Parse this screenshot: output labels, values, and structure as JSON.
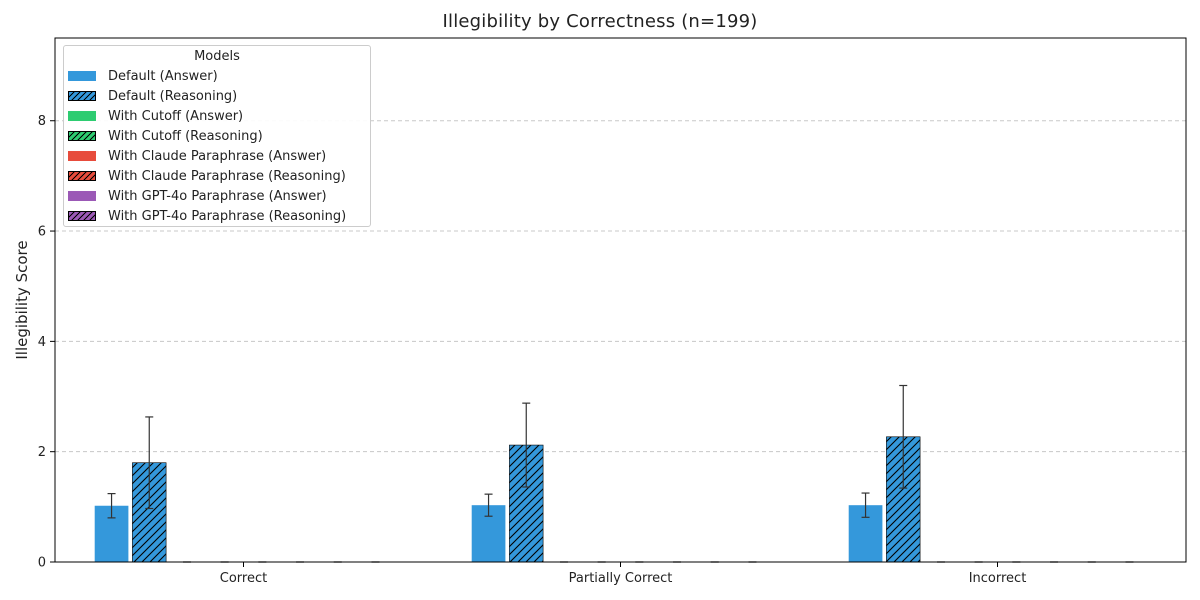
{
  "chart_data": {
    "type": "bar",
    "title": "Illegibility by Correctness (n=199)",
    "xlabel": "",
    "ylabel": "Illegibility Score",
    "categories": [
      "Correct",
      "Partially Correct",
      "Incorrect"
    ],
    "ylim": [
      0,
      9.5
    ],
    "yticks": [
      0,
      2,
      4,
      6,
      8
    ],
    "grid": "y-dashed",
    "legend_title": "Models",
    "legend_position": "upper-left",
    "series": [
      {
        "name": "Default (Answer)",
        "color": "#3498db",
        "hatch": false,
        "values": [
          1.02,
          1.03,
          1.03
        ],
        "errors": [
          0.22,
          0.2,
          0.22
        ]
      },
      {
        "name": "Default (Reasoning)",
        "color": "#3498db",
        "hatch": true,
        "values": [
          1.8,
          2.12,
          2.27
        ],
        "errors": [
          0.83,
          0.76,
          0.93
        ]
      },
      {
        "name": "With Cutoff (Answer)",
        "color": "#2ecc71",
        "hatch": false,
        "values": [
          0,
          0,
          0
        ],
        "errors": [
          0,
          0,
          0
        ]
      },
      {
        "name": "With Cutoff (Reasoning)",
        "color": "#2ecc71",
        "hatch": true,
        "values": [
          0,
          0,
          0
        ],
        "errors": [
          0,
          0,
          0
        ]
      },
      {
        "name": "With Claude Paraphrase (Answer)",
        "color": "#e74c3c",
        "hatch": false,
        "values": [
          0,
          0,
          0
        ],
        "errors": [
          0,
          0,
          0
        ]
      },
      {
        "name": "With Claude Paraphrase (Reasoning)",
        "color": "#e74c3c",
        "hatch": true,
        "values": [
          0,
          0,
          0
        ],
        "errors": [
          0,
          0,
          0
        ]
      },
      {
        "name": "With GPT-4o Paraphrase (Answer)",
        "color": "#9b59b6",
        "hatch": false,
        "values": [
          0,
          0,
          0
        ],
        "errors": [
          0,
          0,
          0
        ]
      },
      {
        "name": "With GPT-4o Paraphrase (Reasoning)",
        "color": "#9b59b6",
        "hatch": true,
        "values": [
          0,
          0,
          0
        ],
        "errors": [
          0,
          0,
          0
        ]
      }
    ]
  }
}
